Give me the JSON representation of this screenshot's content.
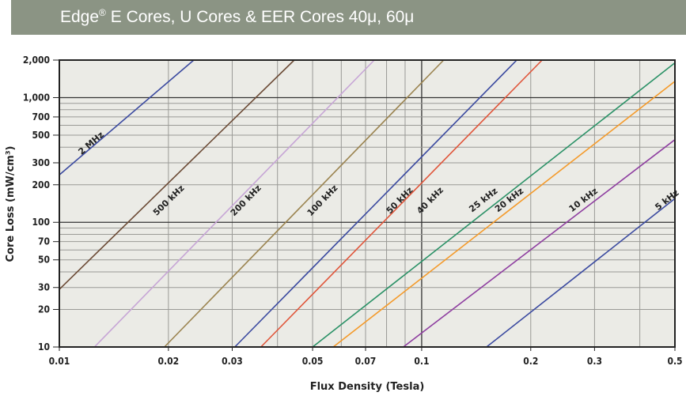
{
  "banner": {
    "brand": "Edge",
    "reg_mark": "®",
    "title_rest": " E Cores, U Cores & EER Cores 40μ, 60μ"
  },
  "chart_data": {
    "type": "line",
    "title": "Edge® E Cores, U Cores & EER Cores 40μ, 60μ",
    "xlabel": "Flux Density (Tesla)",
    "ylabel": "Core Loss (mW/cm³)",
    "xscale": "log",
    "yscale": "log",
    "xlim": [
      0.01,
      0.5
    ],
    "ylim": [
      10,
      2000
    ],
    "grid": true,
    "legend": "inline labels on lines",
    "x_ticks": [
      {
        "v": 0.01,
        "label": "0.01"
      },
      {
        "v": 0.02,
        "label": "0.02"
      },
      {
        "v": 0.03,
        "label": "0.03"
      },
      {
        "v": 0.05,
        "label": "0.05"
      },
      {
        "v": 0.07,
        "label": "0.07"
      },
      {
        "v": 0.1,
        "label": "0.1"
      },
      {
        "v": 0.2,
        "label": "0.2"
      },
      {
        "v": 0.3,
        "label": "0.3"
      },
      {
        "v": 0.5,
        "label": "0.5"
      }
    ],
    "x_grid": [
      0.02,
      0.03,
      0.04,
      0.05,
      0.06,
      0.07,
      0.08,
      0.09,
      0.1,
      0.2,
      0.3,
      0.4
    ],
    "y_ticks": [
      {
        "v": 10,
        "label": "10"
      },
      {
        "v": 20,
        "label": "20"
      },
      {
        "v": 30,
        "label": "30"
      },
      {
        "v": 50,
        "label": "50"
      },
      {
        "v": 70,
        "label": "70"
      },
      {
        "v": 100,
        "label": "100"
      },
      {
        "v": 200,
        "label": "200"
      },
      {
        "v": 300,
        "label": "300"
      },
      {
        "v": 500,
        "label": "500"
      },
      {
        "v": 700,
        "label": "700"
      },
      {
        "v": 1000,
        "label": "1,000"
      },
      {
        "v": 2000,
        "label": "2,000"
      }
    ],
    "y_grid": [
      20,
      30,
      40,
      50,
      60,
      70,
      80,
      90,
      100,
      200,
      300,
      400,
      500,
      600,
      700,
      800,
      900,
      1000
    ],
    "series": [
      {
        "name": "2 MHz",
        "color": "#3b4aa0",
        "points": [
          [
            0.01,
            240
          ],
          [
            0.0235,
            2000
          ]
        ],
        "label_at": [
          0.0125,
          400
        ]
      },
      {
        "name": "500 kHz",
        "color": "#6b4a35",
        "points": [
          [
            0.01,
            29
          ],
          [
            0.0445,
            2000
          ]
        ],
        "label_at": [
          0.0205,
          140
        ]
      },
      {
        "name": "200 kHz",
        "color": "#c7a6d6",
        "points": [
          [
            0.0125,
            10
          ],
          [
            0.074,
            2000
          ]
        ],
        "label_at": [
          0.0335,
          140
        ]
      },
      {
        "name": "100 kHz",
        "color": "#9b8450",
        "points": [
          [
            0.0195,
            10
          ],
          [
            0.115,
            2000
          ]
        ],
        "label_at": [
          0.0545,
          140
        ]
      },
      {
        "name": "50 kHz",
        "color": "#3b4aa0",
        "points": [
          [
            0.0305,
            10
          ],
          [
            0.183,
            2000
          ]
        ],
        "label_at": [
          0.089,
          140
        ]
      },
      {
        "name": "40 kHz",
        "color": "#e0553a",
        "points": [
          [
            0.036,
            10
          ],
          [
            0.215,
            2000
          ]
        ],
        "label_at": [
          0.108,
          140
        ]
      },
      {
        "name": "25 kHz",
        "color": "#2a9166",
        "points": [
          [
            0.05,
            10
          ],
          [
            0.5,
            1900
          ]
        ],
        "label_at": [
          0.151,
          140
        ]
      },
      {
        "name": "20 kHz",
        "color": "#f49a2a",
        "points": [
          [
            0.057,
            10
          ],
          [
            0.5,
            1350
          ]
        ],
        "label_at": [
          0.178,
          140
        ]
      },
      {
        "name": "10 kHz",
        "color": "#8e3ea0",
        "points": [
          [
            0.089,
            10
          ],
          [
            0.5,
            460
          ]
        ],
        "label_at": [
          0.285,
          140
        ]
      },
      {
        "name": "5 kHz",
        "color": "#3b4aa0",
        "points": [
          [
            0.151,
            10
          ],
          [
            0.5,
            155
          ]
        ],
        "label_at": [
          0.485,
          140
        ]
      }
    ]
  }
}
